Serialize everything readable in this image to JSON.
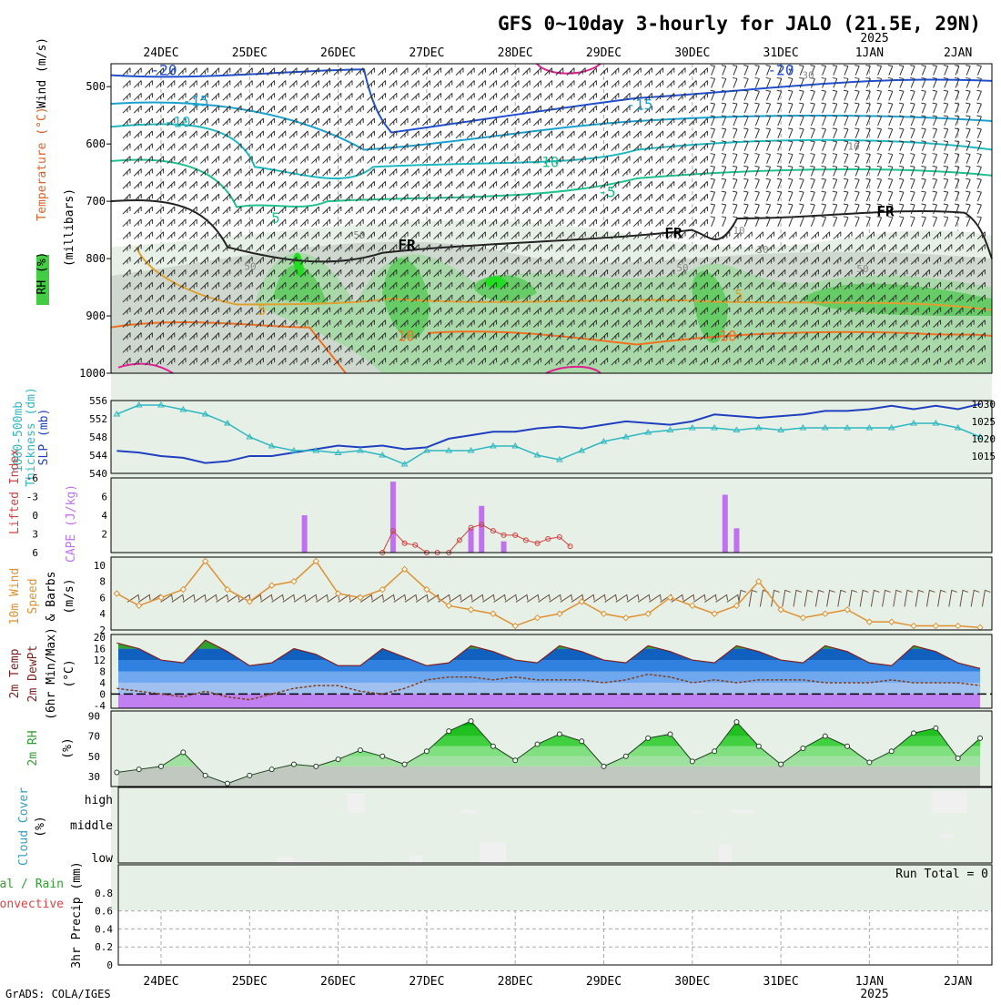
{
  "title": "GFS 0~10day 3-hourly for JALO (21.5E, 29N)",
  "footer": "GrADS: COLA/IGES",
  "year_label": "2025",
  "dates": [
    "24DEC",
    "25DEC",
    "26DEC",
    "27DEC",
    "28DEC",
    "29DEC",
    "30DEC",
    "31DEC",
    "1JAN",
    "2JAN"
  ],
  "colors": {
    "grid": "#aaaaaa",
    "cloud_bg": "#6aaad4",
    "rh_green": "#44cc44",
    "slp": "#2040c0",
    "thickness": "#30b8c0",
    "cape": "#c070f0",
    "lifted": "#d04040",
    "wind": "#e09030",
    "temp_fill": "#30a030"
  },
  "panels": {
    "upper": {
      "ylabels": [
        "Wind (m/s)",
        "Temperature (°C)",
        "RH (%)",
        "(millibars)"
      ],
      "ticks": [
        "500",
        "600",
        "700",
        "800",
        "900",
        "1000"
      ],
      "contour_labels": [
        "-20",
        "-15",
        "-10",
        "-15",
        "-10",
        "-5",
        "-5",
        "-20",
        "5",
        "10",
        "10",
        "5",
        "5",
        "FR",
        "FR",
        "FR",
        "50",
        "50",
        "50",
        "50",
        "30",
        "10",
        "10",
        "30"
      ]
    },
    "slp": {
      "ylabels": [
        "1000-500mb",
        "Thickness (dm)",
        "SLP (mb)"
      ],
      "left_ticks": [
        "556",
        "552",
        "548",
        "544",
        "540"
      ],
      "right_ticks": [
        "1030",
        "1025",
        "1020",
        "1015"
      ]
    },
    "cape": {
      "ylabels": [
        "Lifted Index",
        "CAPE (J/kg)"
      ],
      "left_ticks": [
        "-6",
        "-3",
        "0",
        "3",
        "6"
      ],
      "right_ticks": [
        "6",
        "4",
        "2"
      ]
    },
    "wind": {
      "ylabels": [
        "10m Wind",
        "Speed",
        "& Barbs",
        "(m/s)"
      ],
      "ticks": [
        "10",
        "8",
        "6",
        "4",
        "2"
      ]
    },
    "temp": {
      "ylabels": [
        "2m Temp",
        "2m DewPt",
        "(6hr Min/Max)",
        "(°C)"
      ],
      "ticks": [
        "20",
        "16",
        "12",
        "8",
        "4",
        "0",
        "-4"
      ]
    },
    "rh": {
      "ylabels": [
        "2m RH",
        "(%)"
      ],
      "ticks": [
        "90",
        "70",
        "50",
        "30"
      ]
    },
    "cloud": {
      "ylabels": [
        "Cloud Cover",
        "(%)"
      ],
      "levels": [
        "high",
        "middle",
        "low"
      ]
    },
    "precip": {
      "ylabels": [
        "Total / Rain",
        "Convective",
        "3hr Precip (mm)"
      ],
      "ticks": [
        "0.8",
        "0.6",
        "0.4",
        "0.2",
        "0"
      ],
      "run_total": "Run Total = 0"
    }
  },
  "chart_data": [
    {
      "type": "line",
      "title": "Sea level pressure and 1000-500mb thickness",
      "x_unit": "day index (0 = 24DEC 00Z)",
      "x": [
        -0.5,
        -0.25,
        0,
        0.25,
        0.5,
        0.75,
        1,
        1.25,
        1.5,
        1.75,
        2,
        2.25,
        2.5,
        2.75,
        3,
        3.25,
        3.5,
        3.75,
        4,
        4.25,
        4.5,
        4.75,
        5,
        5.25,
        5.5,
        5.75,
        6,
        6.25,
        6.5,
        6.75,
        7,
        7.25,
        7.5,
        7.75,
        8,
        8.25,
        8.5,
        8.75,
        9,
        9.25
      ],
      "series": [
        {
          "name": "SLP (mb)",
          "axis": "right",
          "ylim": [
            1010,
            1031
          ],
          "values": [
            1016.5,
            1016,
            1015,
            1014.5,
            1013,
            1013.5,
            1015,
            1015,
            1016,
            1017,
            1018,
            1017.5,
            1018,
            1017,
            1017.5,
            1020,
            1021,
            1022,
            1022,
            1023,
            1023.5,
            1023,
            1024,
            1025,
            1024.5,
            1024,
            1025,
            1027,
            1026.5,
            1026,
            1026.5,
            1027,
            1028,
            1028,
            1028.5,
            1029.5,
            1028.5,
            1029.5,
            1028.5,
            1030
          ]
        },
        {
          "name": "1000-500mb Thickness (dm)",
          "axis": "left",
          "ylim": [
            540,
            556
          ],
          "values": [
            553,
            555,
            555,
            554,
            553,
            551,
            548,
            546,
            545,
            545,
            544.5,
            545,
            544,
            542,
            545,
            545,
            545,
            546,
            546,
            544,
            543,
            545,
            547,
            548,
            549,
            549.5,
            550,
            550,
            549.5,
            550,
            549.5,
            550,
            550,
            550,
            550,
            550,
            551,
            551,
            550,
            548
          ]
        }
      ]
    },
    {
      "type": "bar",
      "title": "CAPE and Lifted Index",
      "cape": {
        "name": "CAPE (J/kg)",
        "ylim": [
          0,
          8
        ],
        "x": [
          1.62,
          2.62,
          3.5,
          3.62,
          3.87,
          6.37,
          6.5
        ],
        "values": [
          4,
          7.6,
          2.6,
          5,
          1.2,
          6.2,
          2.6
        ]
      },
      "lifted_index": {
        "name": "Lifted Index",
        "ylim": [
          6,
          -6
        ],
        "x": [
          2.5,
          2.62,
          2.75,
          2.87,
          3,
          3.12,
          3.25,
          3.37,
          3.5,
          3.62,
          3.75,
          3.87,
          4,
          4.12,
          4.25,
          4.37,
          4.5,
          4.62
        ],
        "values": [
          6,
          2.5,
          4.5,
          4.8,
          6,
          6,
          6,
          4,
          2,
          1.5,
          2.5,
          3.2,
          3.2,
          4,
          4.5,
          3.8,
          3.5,
          5
        ]
      }
    },
    {
      "type": "line",
      "title": "10m Wind Speed",
      "ylim": [
        2,
        11
      ],
      "x": [
        -0.5,
        -0.25,
        0,
        0.25,
        0.5,
        0.75,
        1,
        1.25,
        1.5,
        1.75,
        2,
        2.25,
        2.5,
        2.75,
        3,
        3.25,
        3.5,
        3.75,
        4,
        4.25,
        4.5,
        4.75,
        5,
        5.25,
        5.5,
        5.75,
        6,
        6.25,
        6.5,
        6.75,
        7,
        7.25,
        7.5,
        7.75,
        8,
        8.25,
        8.5,
        8.75,
        9,
        9.25
      ],
      "values": [
        6.5,
        5,
        6,
        7,
        10.5,
        7,
        5.5,
        7.5,
        8,
        10.5,
        6.5,
        6,
        7,
        9.5,
        7,
        5,
        4.5,
        4,
        2.5,
        3.5,
        4,
        5.5,
        4,
        3.5,
        4,
        6,
        5,
        4,
        5,
        8,
        4.5,
        3.5,
        4,
        4.5,
        3,
        3,
        2.5,
        2.5,
        2.5,
        2.3
      ]
    },
    {
      "type": "area",
      "title": "2m Temperature and Dew Point",
      "ylim": [
        -5,
        21
      ],
      "x": [
        -0.5,
        -0.25,
        0,
        0.25,
        0.5,
        0.75,
        1,
        1.25,
        1.5,
        1.75,
        2,
        2.25,
        2.5,
        2.75,
        3,
        3.25,
        3.5,
        3.75,
        4,
        4.25,
        4.5,
        4.75,
        5,
        5.25,
        5.5,
        5.75,
        6,
        6.25,
        6.5,
        6.75,
        7,
        7.25,
        7.5,
        7.75,
        8,
        8.25,
        8.5,
        8.75,
        9,
        9.25
      ],
      "series": [
        {
          "name": "2m Temp",
          "values": [
            18,
            16,
            12,
            11,
            19,
            15,
            10,
            11,
            16,
            14,
            10,
            10,
            16,
            13,
            10,
            11,
            17,
            15,
            12,
            11,
            17,
            15,
            12,
            11,
            17,
            15,
            12,
            11,
            17,
            15,
            12,
            11,
            17,
            15,
            11,
            10,
            17,
            15,
            11,
            9
          ]
        },
        {
          "name": "2m DewPt",
          "values": [
            2,
            1,
            0,
            -1,
            1,
            -1,
            -2,
            0,
            2,
            3,
            3,
            1,
            0,
            2,
            5,
            6,
            6,
            5,
            6,
            5,
            5,
            5,
            4,
            5,
            7,
            6,
            4,
            5,
            4,
            5,
            5,
            5,
            4,
            4,
            4,
            5,
            4,
            4,
            4,
            3
          ]
        }
      ]
    },
    {
      "type": "area",
      "title": "2m Relative Humidity",
      "ylim": [
        20,
        95
      ],
      "x": [
        -0.5,
        -0.25,
        0,
        0.25,
        0.5,
        0.75,
        1,
        1.25,
        1.5,
        1.75,
        2,
        2.25,
        2.5,
        2.75,
        3,
        3.25,
        3.5,
        3.75,
        4,
        4.25,
        4.5,
        4.75,
        5,
        5.25,
        5.5,
        5.75,
        6,
        6.25,
        6.5,
        6.75,
        7,
        7.25,
        7.5,
        7.75,
        8,
        8.25,
        8.5,
        8.75,
        9,
        9.25
      ],
      "values": [
        34,
        37,
        40,
        54,
        31,
        23,
        31,
        37,
        42,
        40,
        47,
        56,
        50,
        42,
        55,
        75,
        85,
        60,
        46,
        62,
        72,
        65,
        40,
        50,
        68,
        72,
        45,
        55,
        84,
        60,
        42,
        58,
        70,
        60,
        44,
        55,
        73,
        78,
        48,
        68
      ]
    },
    {
      "type": "bar",
      "title": "Cloud Cover",
      "categories": [
        "high",
        "middle",
        "low"
      ],
      "values": [
        [
          2.2,
          0.1
        ],
        [
          5.0,
          0.3
        ],
        [
          8.8,
          0.45
        ]
      ]
    },
    {
      "type": "bar",
      "title": "3hr Precip",
      "ylim": [
        0,
        1
      ],
      "values": []
    }
  ]
}
